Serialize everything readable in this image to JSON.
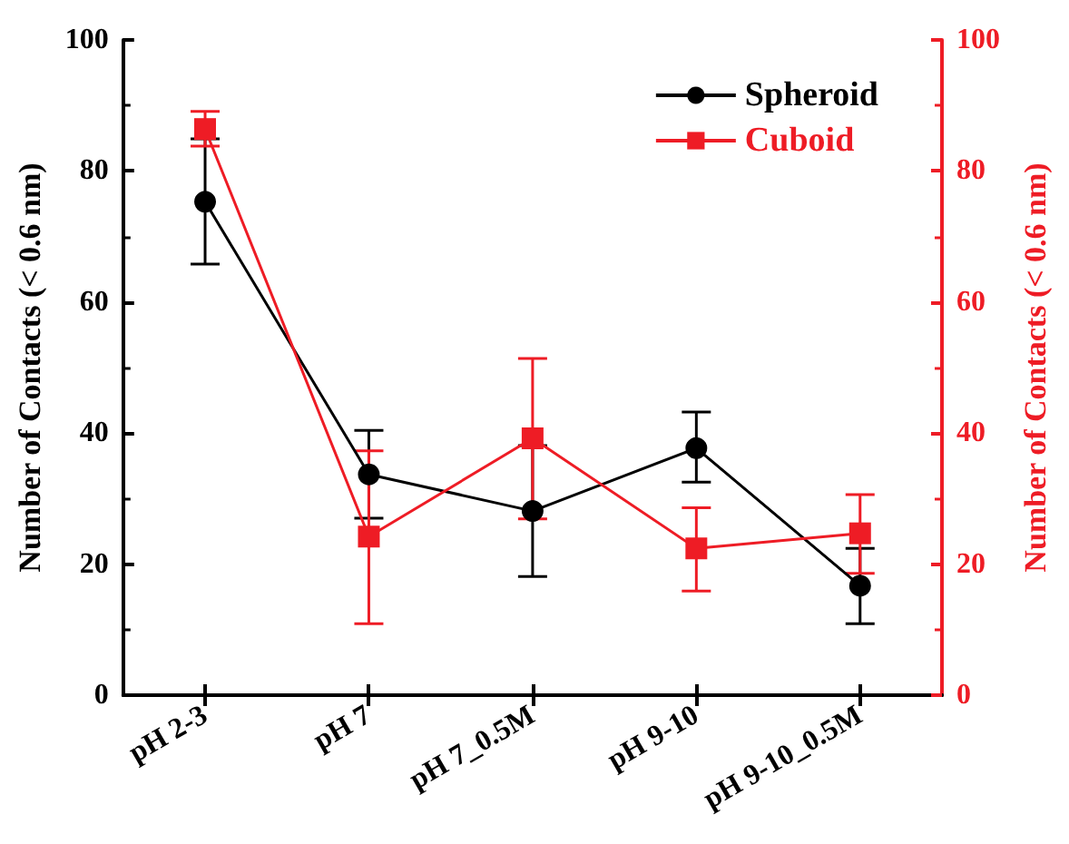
{
  "chart_data": {
    "type": "line",
    "ylabel": "Number of Contacts (< 0.6 nm)",
    "y2label": "Number of Contacts (< 0.6 nm)",
    "categories": [
      "pH 2-3",
      "pH 7",
      "pH 7_0.5M",
      "pH 9-10",
      "pH 9-10_0.5M"
    ],
    "series": [
      {
        "name": "Spheroid",
        "color": "#000000",
        "marker": "circle",
        "values": [
          75.3,
          33.7,
          28.1,
          37.7,
          16.7
        ],
        "errors": [
          [
            65.8,
            84.9
          ],
          [
            27.0,
            40.4
          ],
          [
            18.1,
            38.1
          ],
          [
            32.5,
            43.2
          ],
          [
            10.9,
            22.4
          ]
        ]
      },
      {
        "name": "Cuboid",
        "color": "#ee1c25",
        "marker": "square",
        "axis": "y2",
        "values": [
          86.4,
          24.2,
          39.2,
          22.4,
          24.7
        ],
        "errors": [
          [
            83.8,
            89.1
          ],
          [
            10.9,
            37.3
          ],
          [
            26.9,
            51.4
          ],
          [
            15.9,
            28.6
          ],
          [
            18.6,
            30.6
          ]
        ]
      }
    ],
    "ylim": [
      0,
      100
    ],
    "yticks": [
      0,
      20,
      40,
      60,
      80,
      100
    ],
    "y2lim": [
      0,
      100
    ],
    "y2ticks": [
      0,
      20,
      40,
      60,
      80,
      100
    ],
    "grid": false,
    "legend": "top right",
    "line_style": "solid"
  }
}
